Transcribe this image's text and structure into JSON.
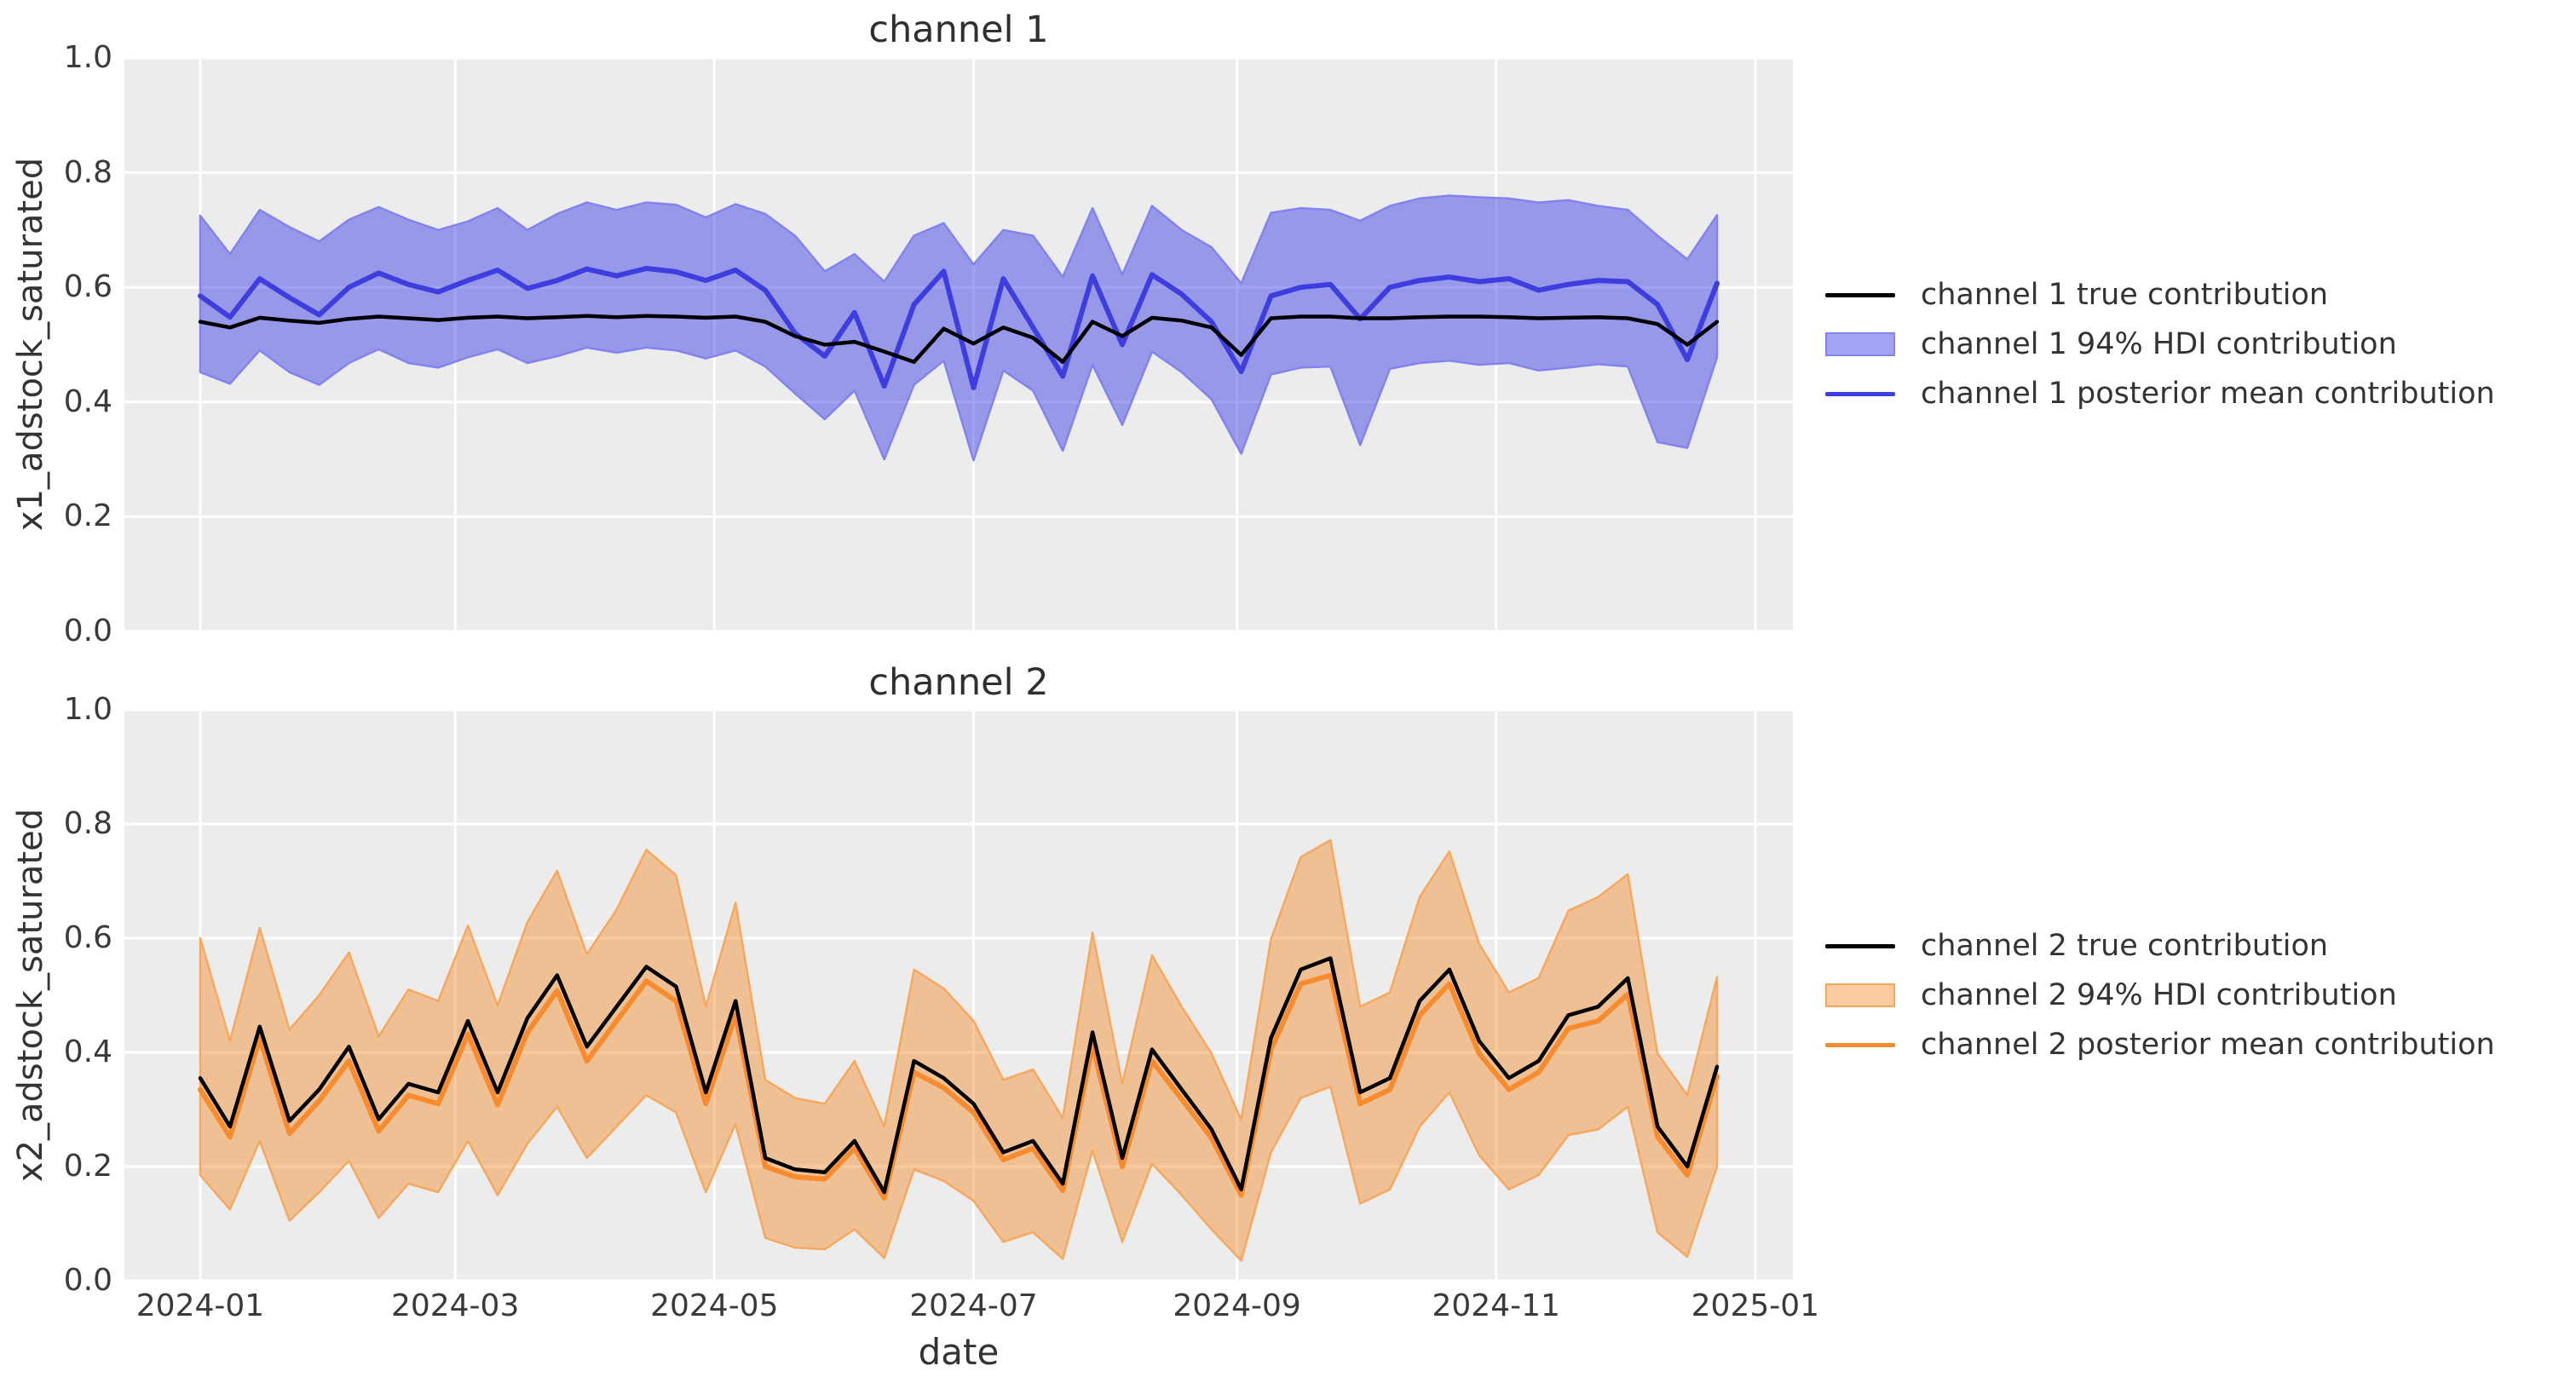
{
  "figure": {
    "background": "#ffffff",
    "plot_background": "#ececec",
    "gridline_color": "#ffffff",
    "text_color": "#333333"
  },
  "chart_data": [
    {
      "type": "line",
      "title": "channel 1",
      "ylabel": "x1_adstock_saturated",
      "xlabel": "",
      "ylim": [
        0.0,
        1.0
      ],
      "grid": true,
      "legend_position": "right",
      "y_ticks": [
        "0.0",
        "0.2",
        "0.4",
        "0.6",
        "0.8",
        "1.0"
      ],
      "x_ticks": [
        {
          "label": "2024-01",
          "day": 0
        },
        {
          "label": "2024-03",
          "day": 60
        },
        {
          "label": "2024-05",
          "day": 121
        },
        {
          "label": "2024-07",
          "day": 182
        },
        {
          "label": "2024-09",
          "day": 244
        },
        {
          "label": "2024-11",
          "day": 305
        },
        {
          "label": "2025-01",
          "day": 366
        }
      ],
      "x_start": "2024-01-01",
      "x_step_days": 7,
      "n_points": 52,
      "colors": {
        "true_line": "#000000",
        "mean_line": "#3d3de0",
        "band_fill": "rgba(50,50,230,0.45)",
        "band_edge": "#8383ef"
      },
      "legend": [
        "channel 1 true contribution",
        "channel 1 94% HDI contribution",
        "channel 1 posterior mean contribution"
      ],
      "series": [
        {
          "name": "channel 1 true contribution",
          "role": "true",
          "values": [
            0.54,
            0.53,
            0.547,
            0.542,
            0.538,
            0.545,
            0.549,
            0.546,
            0.543,
            0.547,
            0.549,
            0.546,
            0.548,
            0.55,
            0.548,
            0.55,
            0.549,
            0.547,
            0.549,
            0.54,
            0.515,
            0.5,
            0.505,
            0.488,
            0.47,
            0.528,
            0.502,
            0.53,
            0.512,
            0.47,
            0.54,
            0.515,
            0.547,
            0.542,
            0.53,
            0.482,
            0.546,
            0.549,
            0.549,
            0.546,
            0.546,
            0.548,
            0.549,
            0.549,
            0.548,
            0.546,
            0.547,
            0.548,
            0.546,
            0.536,
            0.5,
            0.54
          ]
        },
        {
          "name": "channel 1 posterior mean contribution",
          "role": "mean",
          "values": [
            0.585,
            0.548,
            0.615,
            0.582,
            0.552,
            0.6,
            0.625,
            0.605,
            0.592,
            0.612,
            0.63,
            0.598,
            0.612,
            0.632,
            0.62,
            0.633,
            0.627,
            0.612,
            0.63,
            0.595,
            0.52,
            0.48,
            0.556,
            0.428,
            0.57,
            0.628,
            0.425,
            0.615,
            0.53,
            0.445,
            0.62,
            0.5,
            0.622,
            0.588,
            0.54,
            0.453,
            0.585,
            0.6,
            0.605,
            0.545,
            0.6,
            0.612,
            0.618,
            0.61,
            0.615,
            0.595,
            0.605,
            0.612,
            0.61,
            0.57,
            0.474,
            0.607
          ]
        },
        {
          "name": "channel 1 94% HDI lower",
          "role": "band_low",
          "values": [
            0.452,
            0.432,
            0.49,
            0.452,
            0.43,
            0.468,
            0.492,
            0.468,
            0.46,
            0.478,
            0.492,
            0.468,
            0.48,
            0.495,
            0.486,
            0.495,
            0.49,
            0.476,
            0.49,
            0.462,
            0.415,
            0.37,
            0.42,
            0.3,
            0.43,
            0.472,
            0.298,
            0.455,
            0.42,
            0.315,
            0.465,
            0.36,
            0.488,
            0.452,
            0.405,
            0.31,
            0.448,
            0.46,
            0.462,
            0.325,
            0.458,
            0.468,
            0.472,
            0.465,
            0.468,
            0.455,
            0.46,
            0.466,
            0.462,
            0.33,
            0.32,
            0.478
          ]
        },
        {
          "name": "channel 1 94% HDI upper",
          "role": "band_high",
          "values": [
            0.725,
            0.658,
            0.735,
            0.705,
            0.68,
            0.718,
            0.74,
            0.718,
            0.7,
            0.715,
            0.738,
            0.7,
            0.728,
            0.748,
            0.735,
            0.748,
            0.744,
            0.722,
            0.745,
            0.728,
            0.69,
            0.628,
            0.658,
            0.61,
            0.69,
            0.712,
            0.64,
            0.7,
            0.69,
            0.618,
            0.738,
            0.622,
            0.742,
            0.7,
            0.67,
            0.607,
            0.73,
            0.738,
            0.735,
            0.716,
            0.742,
            0.755,
            0.76,
            0.757,
            0.755,
            0.748,
            0.752,
            0.742,
            0.735,
            0.69,
            0.649,
            0.726
          ]
        }
      ]
    },
    {
      "type": "line",
      "title": "channel 2",
      "ylabel": "x2_adstock_saturated",
      "xlabel": "date",
      "ylim": [
        0.0,
        1.0
      ],
      "grid": true,
      "legend_position": "right",
      "y_ticks": [
        "0.0",
        "0.2",
        "0.4",
        "0.6",
        "0.8",
        "1.0"
      ],
      "x_ticks": [
        {
          "label": "2024-01",
          "day": 0
        },
        {
          "label": "2024-03",
          "day": 60
        },
        {
          "label": "2024-05",
          "day": 121
        },
        {
          "label": "2024-07",
          "day": 182
        },
        {
          "label": "2024-09",
          "day": 244
        },
        {
          "label": "2024-11",
          "day": 305
        },
        {
          "label": "2025-01",
          "day": 366
        }
      ],
      "x_start": "2024-01-01",
      "x_step_days": 7,
      "n_points": 52,
      "colors": {
        "true_line": "#000000",
        "mean_line": "#f78b2d",
        "band_fill": "rgba(247,139,45,0.45)",
        "band_edge": "#f5a85e"
      },
      "legend": [
        "channel 2 true contribution",
        "channel 2 94% HDI contribution",
        "channel 2 posterior mean contribution"
      ],
      "series": [
        {
          "name": "channel 2 true contribution",
          "role": "true",
          "values": [
            0.355,
            0.27,
            0.445,
            0.28,
            0.335,
            0.41,
            0.283,
            0.345,
            0.33,
            0.455,
            0.33,
            0.46,
            0.535,
            0.41,
            0.48,
            0.55,
            0.515,
            0.33,
            0.49,
            0.215,
            0.195,
            0.19,
            0.245,
            0.155,
            0.385,
            0.355,
            0.31,
            0.225,
            0.245,
            0.17,
            0.435,
            0.215,
            0.405,
            0.335,
            0.265,
            0.16,
            0.425,
            0.545,
            0.565,
            0.33,
            0.355,
            0.49,
            0.545,
            0.42,
            0.355,
            0.385,
            0.465,
            0.48,
            0.53,
            0.27,
            0.2,
            0.375
          ]
        },
        {
          "name": "channel 2 posterior mean contribution",
          "role": "mean",
          "values": [
            0.335,
            0.252,
            0.425,
            0.258,
            0.315,
            0.385,
            0.262,
            0.325,
            0.31,
            0.432,
            0.308,
            0.435,
            0.508,
            0.385,
            0.455,
            0.525,
            0.49,
            0.31,
            0.465,
            0.2,
            0.182,
            0.178,
            0.232,
            0.145,
            0.365,
            0.338,
            0.295,
            0.212,
            0.232,
            0.158,
            0.412,
            0.2,
            0.385,
            0.318,
            0.25,
            0.15,
            0.405,
            0.52,
            0.535,
            0.31,
            0.335,
            0.465,
            0.52,
            0.398,
            0.335,
            0.365,
            0.442,
            0.455,
            0.502,
            0.252,
            0.185,
            0.358
          ]
        },
        {
          "name": "channel 2 94% HDI lower",
          "role": "band_low",
          "values": [
            0.185,
            0.125,
            0.245,
            0.105,
            0.155,
            0.21,
            0.11,
            0.17,
            0.155,
            0.245,
            0.15,
            0.24,
            0.305,
            0.215,
            0.27,
            0.325,
            0.295,
            0.155,
            0.275,
            0.075,
            0.058,
            0.055,
            0.09,
            0.04,
            0.195,
            0.175,
            0.14,
            0.068,
            0.085,
            0.038,
            0.228,
            0.068,
            0.205,
            0.15,
            0.09,
            0.035,
            0.225,
            0.32,
            0.34,
            0.135,
            0.16,
            0.27,
            0.33,
            0.22,
            0.16,
            0.185,
            0.255,
            0.265,
            0.305,
            0.085,
            0.042,
            0.2
          ]
        },
        {
          "name": "channel 2 94% HDI upper",
          "role": "band_high",
          "values": [
            0.6,
            0.42,
            0.618,
            0.44,
            0.5,
            0.575,
            0.428,
            0.51,
            0.49,
            0.622,
            0.482,
            0.628,
            0.718,
            0.572,
            0.65,
            0.755,
            0.71,
            0.48,
            0.662,
            0.352,
            0.32,
            0.31,
            0.385,
            0.27,
            0.545,
            0.512,
            0.455,
            0.352,
            0.37,
            0.285,
            0.61,
            0.345,
            0.57,
            0.48,
            0.398,
            0.282,
            0.598,
            0.742,
            0.772,
            0.48,
            0.505,
            0.672,
            0.752,
            0.59,
            0.505,
            0.53,
            0.648,
            0.672,
            0.712,
            0.398,
            0.325,
            0.532
          ]
        }
      ]
    }
  ]
}
